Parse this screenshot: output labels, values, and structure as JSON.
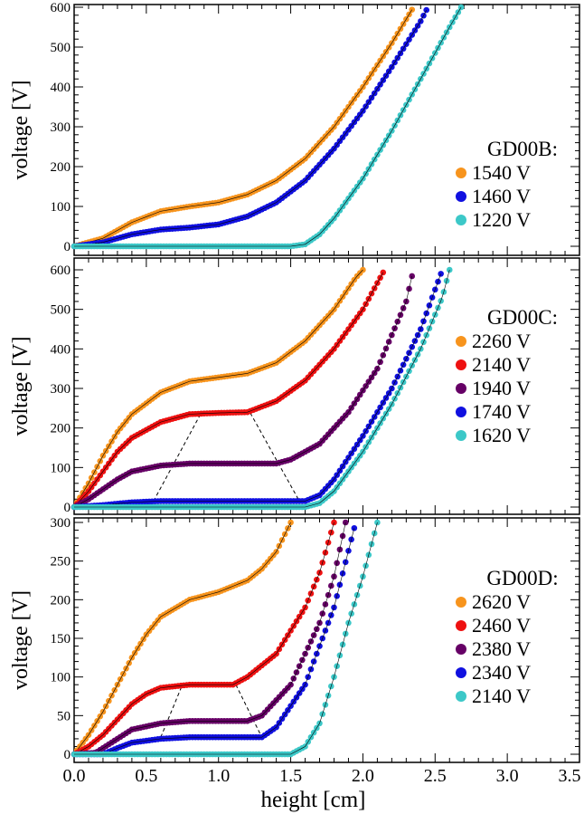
{
  "chart_data": [
    {
      "type": "scatter",
      "title": "GD00B:",
      "ylabel": "voltage [V]",
      "xlim": [
        0,
        3.5
      ],
      "ylim": [
        0,
        600
      ],
      "yticks": [
        0,
        100,
        200,
        300,
        400,
        500,
        600
      ],
      "legend": "right",
      "series": [
        {
          "name": "1540 V",
          "color": "#f7941d",
          "x": [
            0,
            0.2,
            0.4,
            0.6,
            0.8,
            1.0,
            1.2,
            1.4,
            1.6,
            1.8,
            2.0,
            2.2,
            2.35
          ],
          "y": [
            0,
            20,
            60,
            88,
            100,
            110,
            130,
            165,
            220,
            300,
            400,
            510,
            600
          ]
        },
        {
          "name": "1460 V",
          "color": "#1010e0",
          "x": [
            0,
            0.2,
            0.4,
            0.6,
            0.8,
            1.0,
            1.2,
            1.4,
            1.6,
            1.8,
            2.0,
            2.2,
            2.4,
            2.45
          ],
          "y": [
            0,
            10,
            30,
            42,
            47,
            55,
            75,
            110,
            165,
            245,
            340,
            450,
            565,
            600
          ]
        },
        {
          "name": "1220 V",
          "color": "#3cc8c8",
          "x": [
            0,
            1.5,
            1.6,
            1.7,
            1.8,
            2.0,
            2.2,
            2.4,
            2.6,
            2.68
          ],
          "y": [
            0,
            0,
            5,
            30,
            70,
            170,
            290,
            420,
            550,
            600
          ]
        }
      ],
      "dashed": []
    },
    {
      "type": "scatter",
      "title": "GD00C:",
      "ylabel": "voltage [V]",
      "xlim": [
        0,
        3.5
      ],
      "ylim": [
        0,
        600
      ],
      "yticks": [
        0,
        100,
        200,
        300,
        400,
        500,
        600
      ],
      "legend": "right",
      "series": [
        {
          "name": "2260 V",
          "color": "#f7941d",
          "x": [
            0,
            0.1,
            0.2,
            0.3,
            0.4,
            0.6,
            0.8,
            1.0,
            1.2,
            1.4,
            1.6,
            1.8,
            1.95,
            2.0
          ],
          "y": [
            0,
            60,
            130,
            190,
            235,
            290,
            318,
            328,
            338,
            365,
            420,
            500,
            580,
            600
          ]
        },
        {
          "name": "2140 V",
          "color": "#ee1111",
          "x": [
            0,
            0.1,
            0.2,
            0.3,
            0.4,
            0.6,
            0.8,
            1.0,
            1.2,
            1.4,
            1.6,
            1.8,
            2.0,
            2.15
          ],
          "y": [
            0,
            40,
            90,
            140,
            175,
            215,
            235,
            238,
            240,
            268,
            320,
            400,
            500,
            600
          ]
        },
        {
          "name": "1940 V",
          "color": "#660066",
          "x": [
            0,
            0.1,
            0.2,
            0.3,
            0.4,
            0.6,
            0.8,
            1.4,
            1.5,
            1.7,
            1.9,
            2.1,
            2.3,
            2.35
          ],
          "y": [
            0,
            20,
            45,
            70,
            90,
            105,
            110,
            110,
            120,
            160,
            240,
            350,
            520,
            600
          ]
        },
        {
          "name": "1740 V",
          "color": "#1010e0",
          "x": [
            0,
            0.2,
            0.4,
            0.6,
            1.6,
            1.7,
            1.8,
            2.0,
            2.2,
            2.4,
            2.5,
            2.55
          ],
          "y": [
            0,
            5,
            12,
            15,
            15,
            30,
            70,
            180,
            300,
            450,
            550,
            600
          ]
        },
        {
          "name": "1620 V",
          "color": "#3cc8c8",
          "x": [
            0,
            1.6,
            1.7,
            1.8,
            2.0,
            2.2,
            2.4,
            2.55,
            2.6
          ],
          "y": [
            0,
            0,
            10,
            40,
            140,
            260,
            400,
            530,
            600
          ]
        }
      ],
      "dashed": [
        [
          [
            0.55,
            15
          ],
          [
            0.88,
            238
          ]
        ],
        [
          [
            1.22,
            238
          ],
          [
            1.56,
            15
          ]
        ]
      ]
    },
    {
      "type": "scatter",
      "title": "GD00D:",
      "xlabel": "height [cm]",
      "ylabel": "voltage [V]",
      "xlim": [
        0,
        3.5
      ],
      "ylim": [
        0,
        300
      ],
      "yticks": [
        0,
        50,
        100,
        150,
        200,
        250,
        300
      ],
      "xticks": [
        "0.0",
        "0.5",
        "1.0",
        "1.5",
        "2.0",
        "2.5",
        "3.0",
        "3.5"
      ],
      "legend": "right",
      "series": [
        {
          "name": "2620 V",
          "color": "#f7941d",
          "x": [
            0,
            0.1,
            0.2,
            0.3,
            0.4,
            0.5,
            0.6,
            0.8,
            1.0,
            1.2,
            1.3,
            1.4,
            1.5
          ],
          "y": [
            0,
            25,
            55,
            90,
            125,
            155,
            178,
            200,
            210,
            225,
            240,
            262,
            300
          ]
        },
        {
          "name": "2460 V",
          "color": "#ee1111",
          "x": [
            0,
            0.1,
            0.2,
            0.3,
            0.4,
            0.5,
            0.6,
            0.8,
            1.1,
            1.2,
            1.4,
            1.6,
            1.7,
            1.8
          ],
          "y": [
            0,
            10,
            25,
            45,
            65,
            78,
            86,
            90,
            90,
            100,
            130,
            190,
            235,
            300
          ]
        },
        {
          "name": "2380 V",
          "color": "#660066",
          "x": [
            0,
            0.15,
            0.2,
            0.3,
            0.4,
            0.6,
            0.8,
            1.2,
            1.3,
            1.5,
            1.7,
            1.8,
            1.88
          ],
          "y": [
            0,
            2,
            8,
            20,
            32,
            40,
            43,
            43,
            50,
            90,
            170,
            230,
            300
          ]
        },
        {
          "name": "2340 V",
          "color": "#1010e0",
          "x": [
            0,
            0.2,
            0.3,
            0.4,
            0.6,
            0.8,
            1.3,
            1.4,
            1.6,
            1.8,
            1.95
          ],
          "y": [
            0,
            0,
            8,
            15,
            20,
            22,
            22,
            35,
            90,
            190,
            300
          ]
        },
        {
          "name": "2140 V",
          "color": "#3cc8c8",
          "x": [
            0,
            1.5,
            1.6,
            1.7,
            1.8,
            1.9,
            2.0,
            2.1
          ],
          "y": [
            0,
            0,
            10,
            40,
            100,
            170,
            230,
            300
          ]
        }
      ],
      "dashed": [
        [
          [
            0.6,
            22
          ],
          [
            0.75,
            90
          ]
        ],
        [
          [
            1.12,
            90
          ],
          [
            1.3,
            22
          ]
        ]
      ]
    }
  ]
}
